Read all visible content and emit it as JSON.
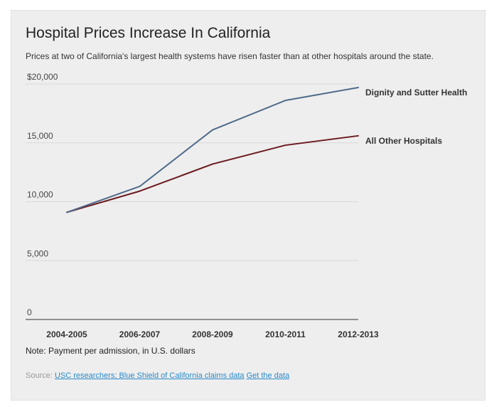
{
  "header": {
    "title": "Hospital Prices Increase In California",
    "subtitle": "Prices at two of California's largest health systems have risen faster than at other hospitals around the state."
  },
  "footer": {
    "note": "Note: Payment per admission, in U.S. dollars",
    "source_prefix": "Source: ",
    "source_link": "USC researchers; Blue Shield of California claims data",
    "data_link": "Get the data"
  },
  "colors": {
    "dignity": "#4f6b8a",
    "others": "#6b1a1f",
    "gridline": "#d9d9d9",
    "axis": "#333333"
  },
  "chart_data": {
    "type": "line",
    "title": "Hospital Prices Increase In California",
    "subtitle": "Prices at two of California's largest health systems have risen faster than at other hospitals around the state.",
    "xlabel": "",
    "ylabel": "",
    "categories": [
      "2004-2005",
      "2006-2007",
      "2008-2009",
      "2010-2011",
      "2012-2013"
    ],
    "ylim": [
      0,
      20000
    ],
    "yticks": [
      {
        "value": 0,
        "label": "0"
      },
      {
        "value": 5000,
        "label": "5,000"
      },
      {
        "value": 10000,
        "label": "10,000"
      },
      {
        "value": 15000,
        "label": "15,000"
      },
      {
        "value": 20000,
        "label": "$20,000"
      }
    ],
    "grid": true,
    "legend": "inline-right",
    "series": [
      {
        "name": "Dignity and Sutter Health",
        "values": [
          9100,
          11300,
          16100,
          18600,
          19700
        ]
      },
      {
        "name": "All Other Hospitals",
        "values": [
          9100,
          10900,
          13200,
          14800,
          15600
        ]
      }
    ]
  }
}
